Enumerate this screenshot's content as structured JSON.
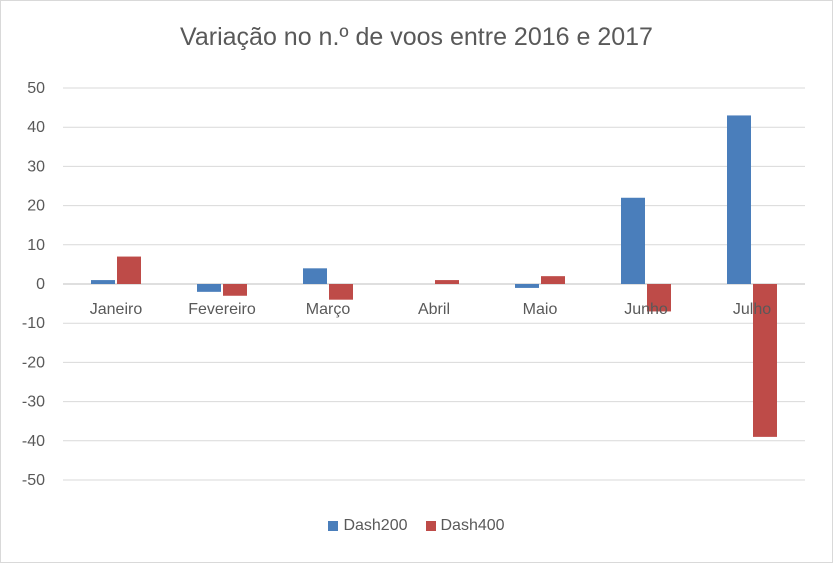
{
  "chart_data": {
    "type": "bar",
    "title": "Variação no n.º de voos entre 2016 e 2017",
    "categories": [
      "Janeiro",
      "Fevereiro",
      "Março",
      "Abril",
      "Maio",
      "Junho",
      "Julho"
    ],
    "series": [
      {
        "name": "Dash200",
        "color": "#4a7ebb",
        "values": [
          1,
          -2,
          4,
          0,
          -1,
          22,
          43
        ]
      },
      {
        "name": "Dash400",
        "color": "#be4b48",
        "values": [
          7,
          -3,
          -4,
          1,
          2,
          -7,
          -39
        ]
      }
    ],
    "ylim": [
      -50,
      50
    ],
    "yticks": [
      50,
      40,
      30,
      20,
      10,
      0,
      -10,
      -20,
      -30,
      -40,
      -50
    ],
    "grid": true,
    "legend_position": "bottom"
  }
}
